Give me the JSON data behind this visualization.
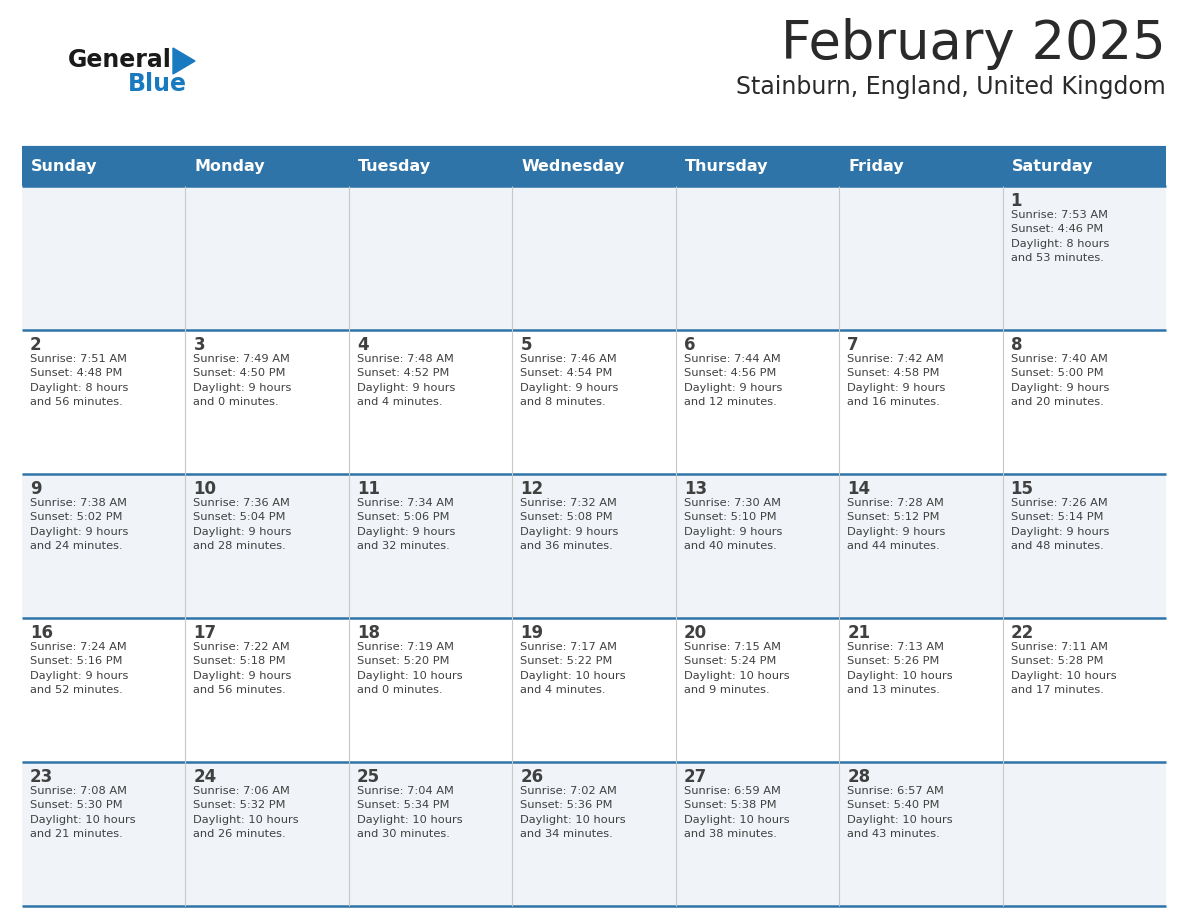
{
  "title": "February 2025",
  "subtitle": "Stainburn, England, United Kingdom",
  "header_bg": "#2E74A8",
  "header_text": "#FFFFFF",
  "cell_bg_light": "#F0F4F8",
  "cell_bg_white": "#FFFFFF",
  "separator_color": "#2E74A8",
  "text_color": "#404040",
  "days_of_week": [
    "Sunday",
    "Monday",
    "Tuesday",
    "Wednesday",
    "Thursday",
    "Friday",
    "Saturday"
  ],
  "weeks": [
    [
      {
        "day": null,
        "info": null
      },
      {
        "day": null,
        "info": null
      },
      {
        "day": null,
        "info": null
      },
      {
        "day": null,
        "info": null
      },
      {
        "day": null,
        "info": null
      },
      {
        "day": null,
        "info": null
      },
      {
        "day": 1,
        "info": "Sunrise: 7:53 AM\nSunset: 4:46 PM\nDaylight: 8 hours\nand 53 minutes."
      }
    ],
    [
      {
        "day": 2,
        "info": "Sunrise: 7:51 AM\nSunset: 4:48 PM\nDaylight: 8 hours\nand 56 minutes."
      },
      {
        "day": 3,
        "info": "Sunrise: 7:49 AM\nSunset: 4:50 PM\nDaylight: 9 hours\nand 0 minutes."
      },
      {
        "day": 4,
        "info": "Sunrise: 7:48 AM\nSunset: 4:52 PM\nDaylight: 9 hours\nand 4 minutes."
      },
      {
        "day": 5,
        "info": "Sunrise: 7:46 AM\nSunset: 4:54 PM\nDaylight: 9 hours\nand 8 minutes."
      },
      {
        "day": 6,
        "info": "Sunrise: 7:44 AM\nSunset: 4:56 PM\nDaylight: 9 hours\nand 12 minutes."
      },
      {
        "day": 7,
        "info": "Sunrise: 7:42 AM\nSunset: 4:58 PM\nDaylight: 9 hours\nand 16 minutes."
      },
      {
        "day": 8,
        "info": "Sunrise: 7:40 AM\nSunset: 5:00 PM\nDaylight: 9 hours\nand 20 minutes."
      }
    ],
    [
      {
        "day": 9,
        "info": "Sunrise: 7:38 AM\nSunset: 5:02 PM\nDaylight: 9 hours\nand 24 minutes."
      },
      {
        "day": 10,
        "info": "Sunrise: 7:36 AM\nSunset: 5:04 PM\nDaylight: 9 hours\nand 28 minutes."
      },
      {
        "day": 11,
        "info": "Sunrise: 7:34 AM\nSunset: 5:06 PM\nDaylight: 9 hours\nand 32 minutes."
      },
      {
        "day": 12,
        "info": "Sunrise: 7:32 AM\nSunset: 5:08 PM\nDaylight: 9 hours\nand 36 minutes."
      },
      {
        "day": 13,
        "info": "Sunrise: 7:30 AM\nSunset: 5:10 PM\nDaylight: 9 hours\nand 40 minutes."
      },
      {
        "day": 14,
        "info": "Sunrise: 7:28 AM\nSunset: 5:12 PM\nDaylight: 9 hours\nand 44 minutes."
      },
      {
        "day": 15,
        "info": "Sunrise: 7:26 AM\nSunset: 5:14 PM\nDaylight: 9 hours\nand 48 minutes."
      }
    ],
    [
      {
        "day": 16,
        "info": "Sunrise: 7:24 AM\nSunset: 5:16 PM\nDaylight: 9 hours\nand 52 minutes."
      },
      {
        "day": 17,
        "info": "Sunrise: 7:22 AM\nSunset: 5:18 PM\nDaylight: 9 hours\nand 56 minutes."
      },
      {
        "day": 18,
        "info": "Sunrise: 7:19 AM\nSunset: 5:20 PM\nDaylight: 10 hours\nand 0 minutes."
      },
      {
        "day": 19,
        "info": "Sunrise: 7:17 AM\nSunset: 5:22 PM\nDaylight: 10 hours\nand 4 minutes."
      },
      {
        "day": 20,
        "info": "Sunrise: 7:15 AM\nSunset: 5:24 PM\nDaylight: 10 hours\nand 9 minutes."
      },
      {
        "day": 21,
        "info": "Sunrise: 7:13 AM\nSunset: 5:26 PM\nDaylight: 10 hours\nand 13 minutes."
      },
      {
        "day": 22,
        "info": "Sunrise: 7:11 AM\nSunset: 5:28 PM\nDaylight: 10 hours\nand 17 minutes."
      }
    ],
    [
      {
        "day": 23,
        "info": "Sunrise: 7:08 AM\nSunset: 5:30 PM\nDaylight: 10 hours\nand 21 minutes."
      },
      {
        "day": 24,
        "info": "Sunrise: 7:06 AM\nSunset: 5:32 PM\nDaylight: 10 hours\nand 26 minutes."
      },
      {
        "day": 25,
        "info": "Sunrise: 7:04 AM\nSunset: 5:34 PM\nDaylight: 10 hours\nand 30 minutes."
      },
      {
        "day": 26,
        "info": "Sunrise: 7:02 AM\nSunset: 5:36 PM\nDaylight: 10 hours\nand 34 minutes."
      },
      {
        "day": 27,
        "info": "Sunrise: 6:59 AM\nSunset: 5:38 PM\nDaylight: 10 hours\nand 38 minutes."
      },
      {
        "day": 28,
        "info": "Sunrise: 6:57 AM\nSunset: 5:40 PM\nDaylight: 10 hours\nand 43 minutes."
      },
      {
        "day": null,
        "info": null
      }
    ]
  ],
  "logo_color_general": "#1a1a1a",
  "logo_color_blue": "#1a7abf",
  "logo_triangle_color": "#1a7abf"
}
